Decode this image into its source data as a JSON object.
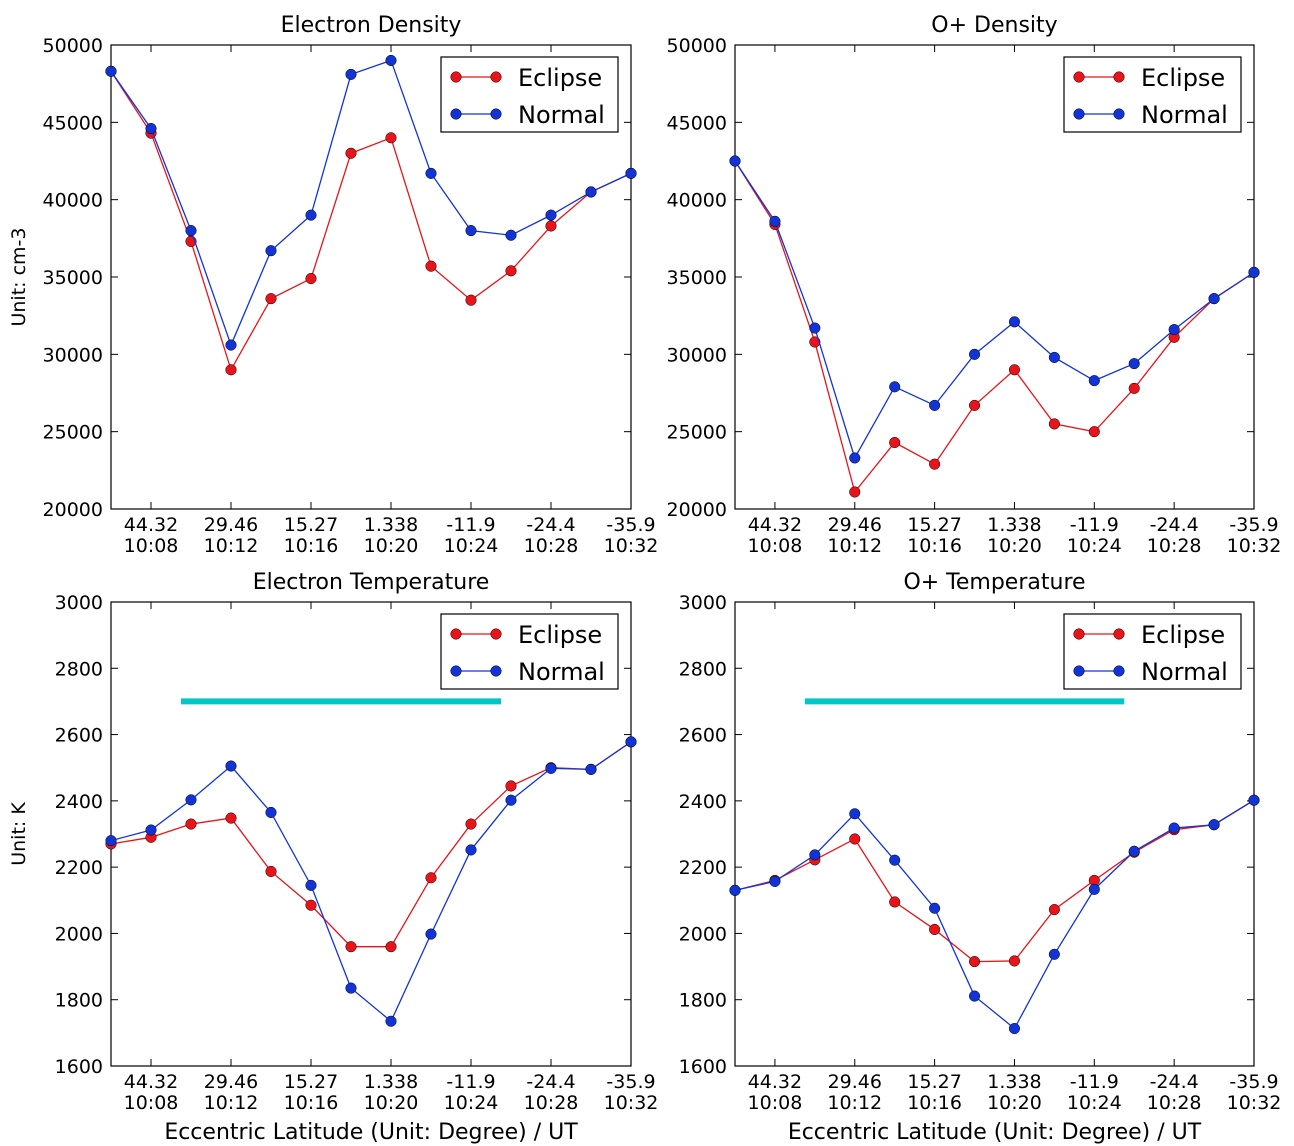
{
  "xlabel": "Eccentric Latitude (Unit: Degree) / UT",
  "colors": {
    "eclipse": "#e8141a",
    "normal": "#1234d6",
    "bar": "#00c8c8"
  },
  "chart_data": [
    {
      "type": "line",
      "title": "Electron Density",
      "ylabel": "Unit: cm-3",
      "ylim": [
        20000,
        50000
      ],
      "yticks": [
        "20000",
        "25000",
        "30000",
        "35000",
        "40000",
        "45000",
        "50000"
      ],
      "xtick_lat": [
        "44.32",
        "29.46",
        "15.27",
        "1.338",
        "-11.9",
        "-24.4",
        "-35.9"
      ],
      "xtick_ut": [
        "10:08",
        "10:12",
        "10:16",
        "10:20",
        "10:24",
        "10:28",
        "10:32"
      ],
      "legend": "top-right",
      "series": [
        {
          "name": "Eclipse",
          "values": [
            48300,
            44300,
            37300,
            29000,
            33600,
            34900,
            43000,
            44000,
            35700,
            33500,
            35400,
            38300,
            40500,
            41700
          ]
        },
        {
          "name": "Normal",
          "values": [
            48300,
            44600,
            38000,
            30600,
            36700,
            39000,
            48100,
            49000,
            41700,
            38000,
            37700,
            39000,
            40500,
            41700
          ]
        }
      ]
    },
    {
      "type": "line",
      "title": "O+ Density",
      "ylabel": "",
      "ylim": [
        20000,
        50000
      ],
      "yticks": [
        "20000",
        "25000",
        "30000",
        "35000",
        "40000",
        "45000",
        "50000"
      ],
      "xtick_lat": [
        "44.32",
        "29.46",
        "15.27",
        "1.338",
        "-11.9",
        "-24.4",
        "-35.9"
      ],
      "xtick_ut": [
        "10:08",
        "10:12",
        "10:16",
        "10:20",
        "10:24",
        "10:28",
        "10:32"
      ],
      "legend": "top-right",
      "series": [
        {
          "name": "Eclipse",
          "values": [
            42500,
            38400,
            30800,
            21100,
            24300,
            22900,
            26700,
            29000,
            25500,
            25000,
            27800,
            31100,
            33600,
            35300
          ]
        },
        {
          "name": "Normal",
          "values": [
            42500,
            38600,
            31700,
            23300,
            27900,
            26700,
            30000,
            32100,
            29800,
            28300,
            29400,
            31600,
            33600,
            35300
          ]
        }
      ]
    },
    {
      "type": "line",
      "title": "Electron Temperature",
      "ylabel": "Unit: K",
      "ylim": [
        1600,
        3000
      ],
      "yticks": [
        "1600",
        "1800",
        "2000",
        "2200",
        "2400",
        "2600",
        "2800",
        "3000"
      ],
      "xtick_lat": [
        "44.32",
        "29.46",
        "15.27",
        "1.338",
        "-11.9",
        "-24.4",
        "-35.9"
      ],
      "xtick_ut": [
        "10:08",
        "10:12",
        "10:16",
        "10:20",
        "10:24",
        "10:28",
        "10:32"
      ],
      "xlabel": "Eccentric Latitude (Unit: Degree) / UT",
      "legend": "top-right",
      "marker_bar": {
        "from_index": 1.75,
        "to_index": 9.75,
        "value": 2700
      },
      "series": [
        {
          "name": "Eclipse",
          "values": [
            2270,
            2290,
            2330,
            2348,
            2187,
            2085,
            1960,
            1960,
            2168,
            2330,
            2445,
            2500,
            2495,
            2578
          ]
        },
        {
          "name": "Normal",
          "values": [
            2280,
            2312,
            2403,
            2505,
            2365,
            2145,
            1835,
            1735,
            1998,
            2252,
            2402,
            2498,
            2495,
            2578
          ]
        }
      ]
    },
    {
      "type": "line",
      "title": "O+ Temperature",
      "ylabel": "",
      "ylim": [
        1600,
        3000
      ],
      "yticks": [
        "1600",
        "1800",
        "2000",
        "2200",
        "2400",
        "2600",
        "2800",
        "3000"
      ],
      "xtick_lat": [
        "44.32",
        "29.46",
        "15.27",
        "1.338",
        "-11.9",
        "-24.4",
        "-35.9"
      ],
      "xtick_ut": [
        "10:08",
        "10:12",
        "10:16",
        "10:20",
        "10:24",
        "10:28",
        "10:32"
      ],
      "xlabel": "Eccentric Latitude (Unit: Degree) / UT",
      "legend": "top-right",
      "marker_bar": {
        "from_index": 1.75,
        "to_index": 9.75,
        "value": 2700
      },
      "series": [
        {
          "name": "Eclipse",
          "values": [
            2130,
            2160,
            2222,
            2285,
            2095,
            2012,
            1915,
            1917,
            2072,
            2160,
            2245,
            2313,
            2328,
            2402
          ]
        },
        {
          "name": "Normal",
          "values": [
            2130,
            2157,
            2237,
            2361,
            2221,
            2076,
            1811,
            1713,
            1937,
            2133,
            2248,
            2318,
            2328,
            2402
          ]
        }
      ]
    }
  ]
}
